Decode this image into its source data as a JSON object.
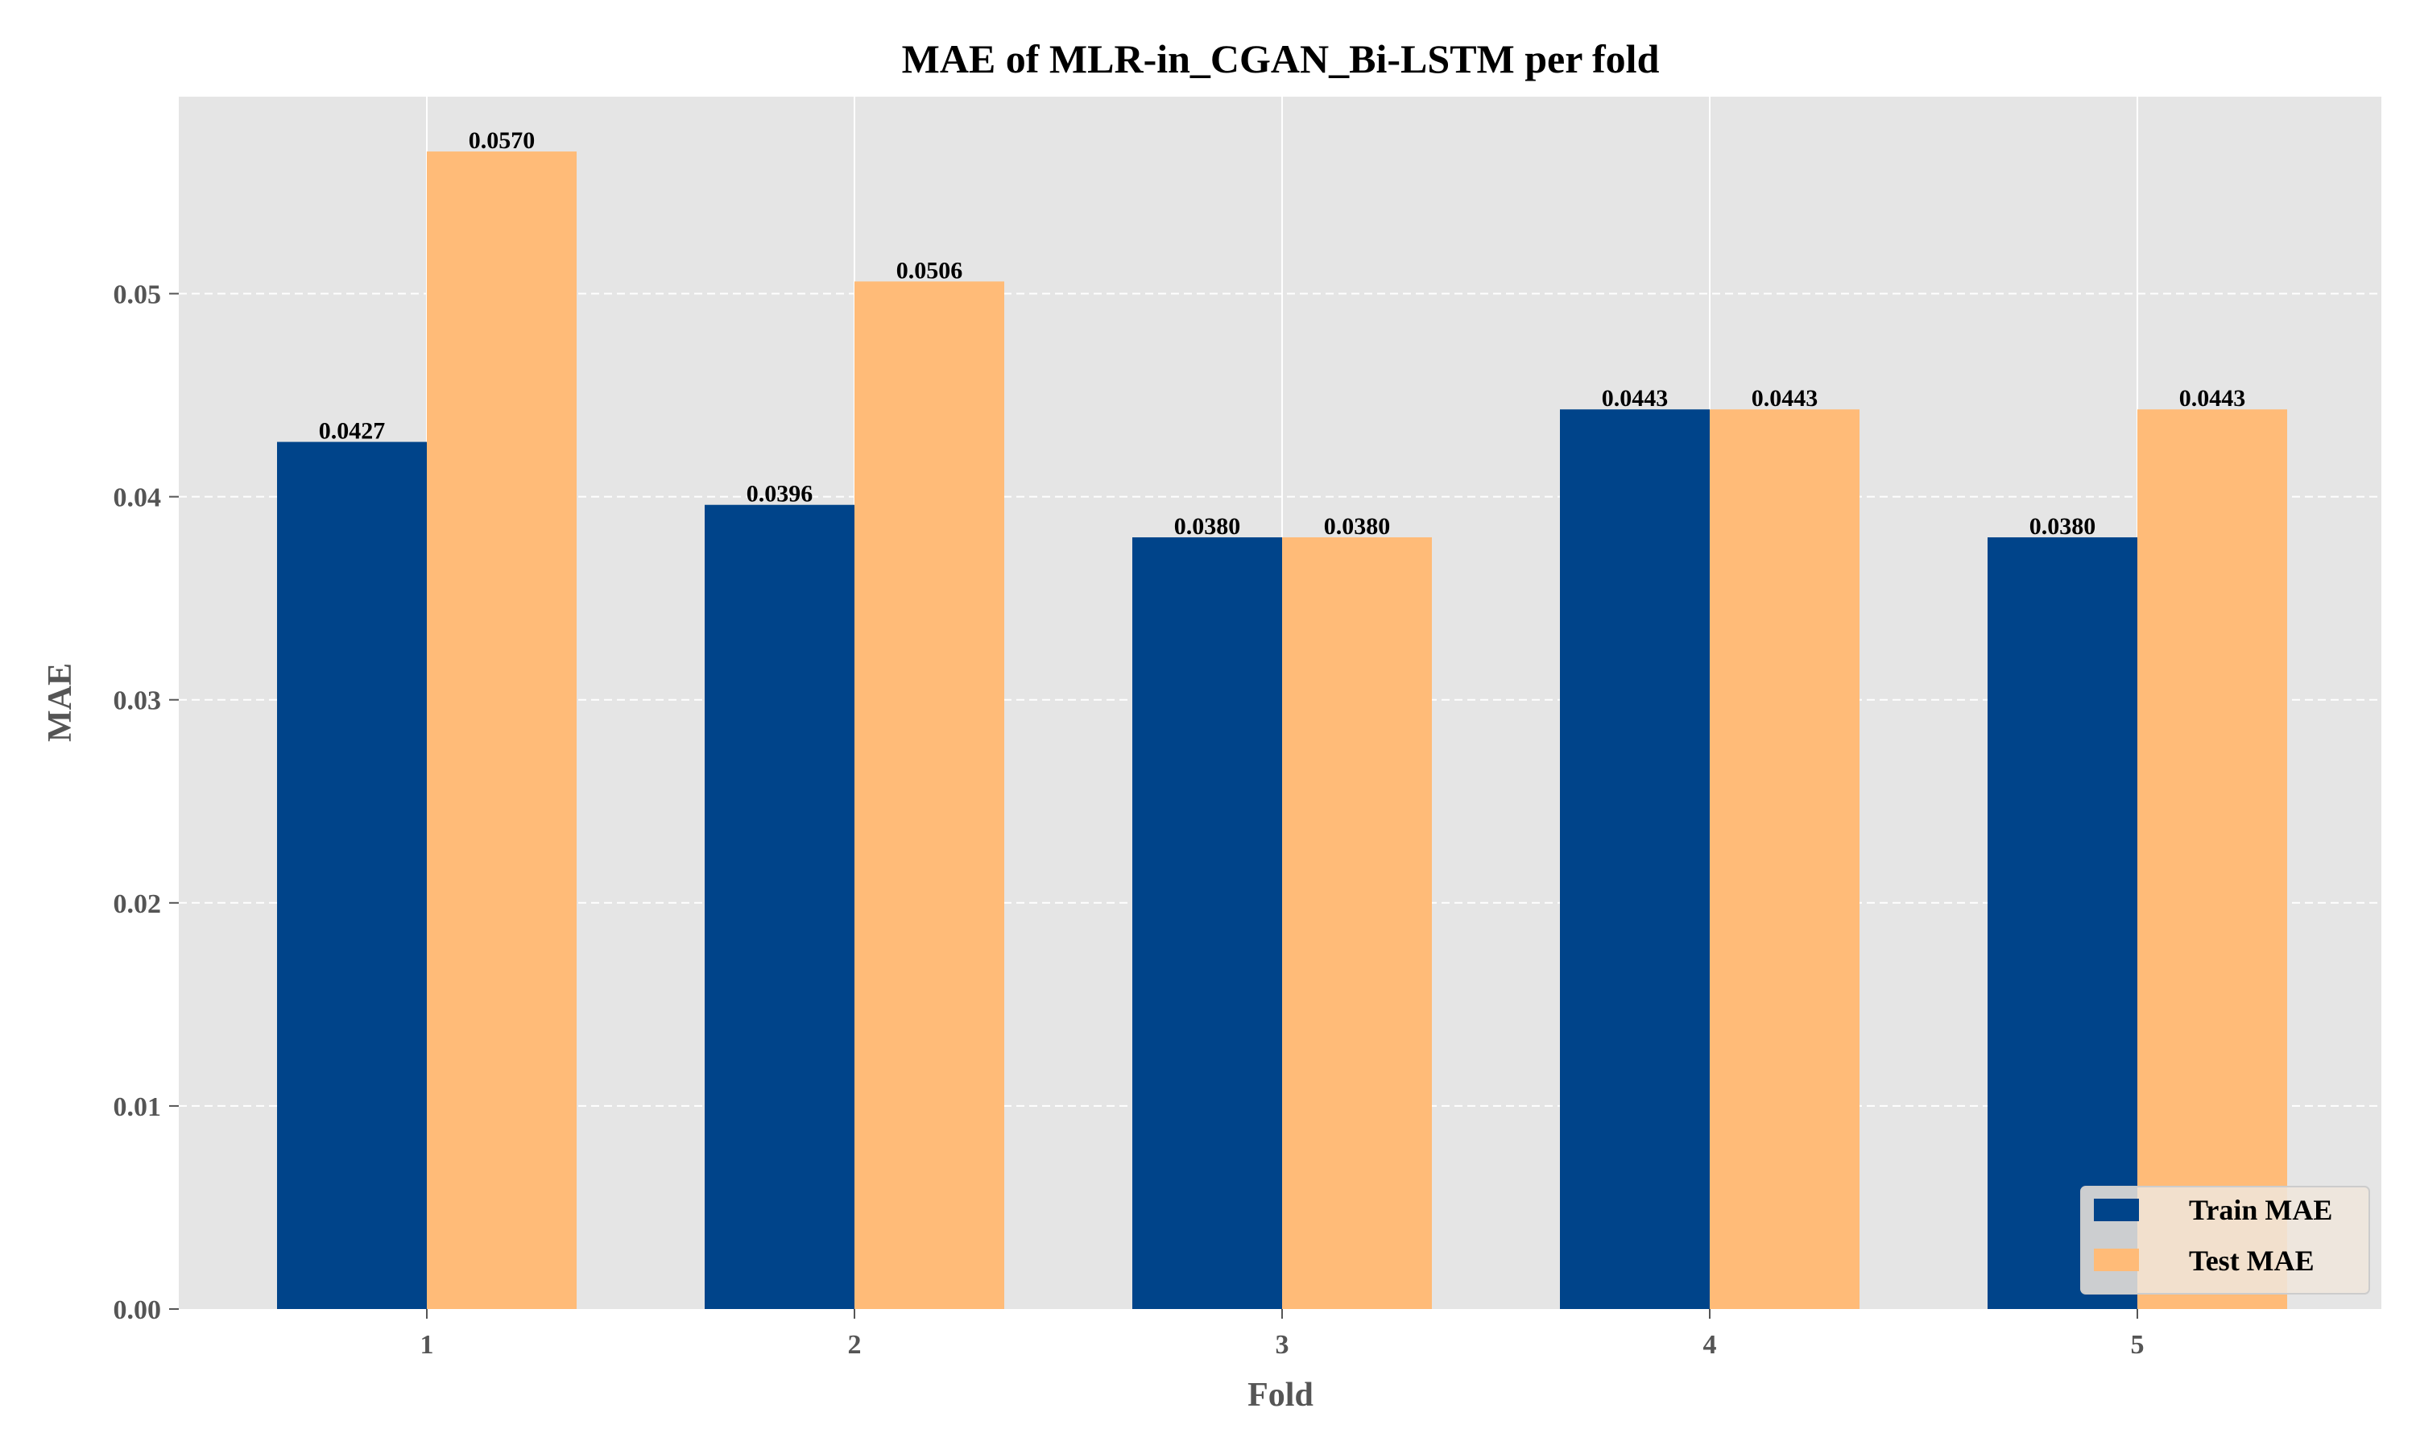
{
  "chart_data": {
    "type": "bar",
    "title": "MAE of MLR-in_CGAN_Bi-LSTM per fold",
    "xlabel": "Fold",
    "ylabel": "MAE",
    "categories": [
      "1",
      "2",
      "3",
      "4",
      "5"
    ],
    "series": [
      {
        "name": "Train MAE",
        "color": "#00448a",
        "values": [
          0.0427,
          0.0396,
          0.038,
          0.0443,
          0.038
        ]
      },
      {
        "name": "Test MAE",
        "color": "#ffbb78",
        "values": [
          0.057,
          0.0506,
          0.038,
          0.0443,
          0.0443
        ]
      }
    ],
    "value_labels": [
      [
        "0.0427",
        "0.0396",
        "0.0380",
        "0.0443",
        "0.0380"
      ],
      [
        "0.0570",
        "0.0506",
        "0.0380",
        "0.0443",
        "0.0443"
      ]
    ],
    "ylim": [
      0,
      0.0597
    ],
    "yticks": [
      0.0,
      0.01,
      0.02,
      0.03,
      0.04,
      0.05
    ],
    "ytick_labels": [
      "0.00",
      "0.01",
      "0.02",
      "0.03",
      "0.04",
      "0.05"
    ],
    "grid": {
      "y": "dashed",
      "x": "solid"
    },
    "legend_position": "lower-right",
    "background_color": "#e5e5e5"
  }
}
